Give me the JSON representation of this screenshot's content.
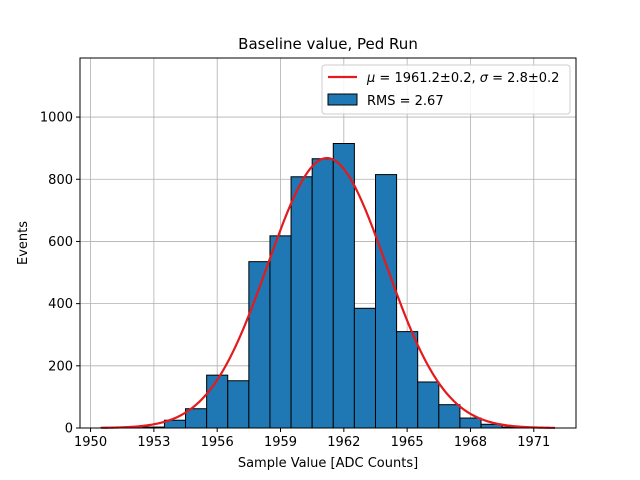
{
  "chart_data": {
    "type": "bar",
    "title": "Baseline value, Ped Run",
    "xlabel": "Sample Value [ADC Counts]",
    "ylabel": "Events",
    "xlim": [
      1949.5,
      1973
    ],
    "ylim": [
      0,
      1190
    ],
    "x_ticks": [
      1950,
      1953,
      1956,
      1959,
      1962,
      1965,
      1968,
      1971
    ],
    "y_ticks": [
      0,
      200,
      400,
      600,
      800,
      1000
    ],
    "grid": true,
    "legend_position": "upper right",
    "bar_color": "#1f77b4",
    "bar_edge_color": "#000000",
    "bin_width": 1,
    "bins": [
      {
        "left": 1950.5,
        "value": 2
      },
      {
        "left": 1951.5,
        "value": 1
      },
      {
        "left": 1952.5,
        "value": 3
      },
      {
        "left": 1953.5,
        "value": 25
      },
      {
        "left": 1954.5,
        "value": 62
      },
      {
        "left": 1955.5,
        "value": 170
      },
      {
        "left": 1956.5,
        "value": 152
      },
      {
        "left": 1957.5,
        "value": 535
      },
      {
        "left": 1958.5,
        "value": 618
      },
      {
        "left": 1959.5,
        "value": 808
      },
      {
        "left": 1960.5,
        "value": 866
      },
      {
        "left": 1961.5,
        "value": 915
      },
      {
        "left": 1962.5,
        "value": 385
      },
      {
        "left": 1963.5,
        "value": 815
      },
      {
        "left": 1964.5,
        "value": 310
      },
      {
        "left": 1965.5,
        "value": 148
      },
      {
        "left": 1966.5,
        "value": 75
      },
      {
        "left": 1967.5,
        "value": 32
      },
      {
        "left": 1968.5,
        "value": 12
      },
      {
        "left": 1969.5,
        "value": 3
      }
    ],
    "fit": {
      "mu": 1961.2,
      "sigma": 2.8,
      "amplitude": 868,
      "x_range": [
        1950.5,
        1972
      ],
      "color": "#e41a1c"
    },
    "legend": [
      {
        "kind": "line",
        "prefix_mu": "μ",
        "text_a": " = 1961.2±0.2, ",
        "prefix_sigma": "σ",
        "text_b": " = 2.8±0.2"
      },
      {
        "kind": "patch",
        "text": "RMS = 2.67"
      }
    ]
  }
}
